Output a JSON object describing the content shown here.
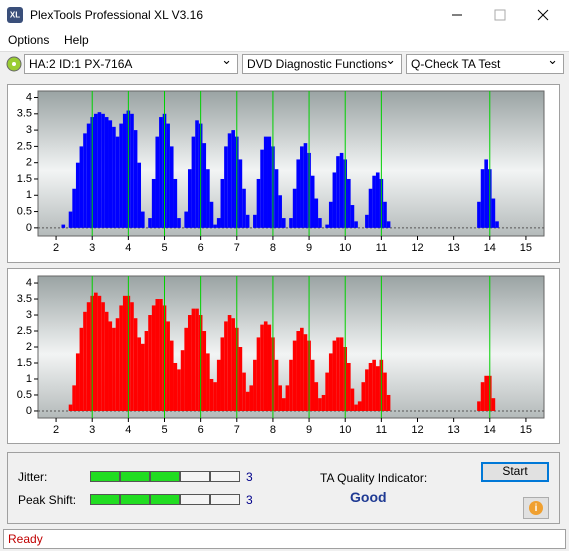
{
  "window": {
    "title": "PlexTools Professional XL V3.16"
  },
  "menu": [
    "Options",
    "Help"
  ],
  "toolbar": {
    "drive": "HA:2 ID:1  PX-716A",
    "function": "DVD Diagnostic Functions",
    "test": "Q-Check TA Test"
  },
  "chart_data": [
    {
      "type": "bar",
      "color": "#0000ff",
      "marker_color": "#00d000",
      "x": [
        2,
        2.1,
        2.2,
        2.3,
        2.4,
        2.5,
        2.6,
        2.7,
        2.8,
        2.9,
        3,
        3.1,
        3.2,
        3.3,
        3.4,
        3.5,
        3.6,
        3.7,
        3.8,
        3.9,
        4,
        4.1,
        4.2,
        4.3,
        4.4,
        4.5,
        4.6,
        4.7,
        4.8,
        4.9,
        5,
        5.1,
        5.2,
        5.3,
        5.4,
        5.5,
        5.6,
        5.7,
        5.8,
        5.9,
        6,
        6.1,
        6.2,
        6.3,
        6.4,
        6.5,
        6.6,
        6.7,
        6.8,
        6.9,
        7,
        7.1,
        7.2,
        7.3,
        7.4,
        7.5,
        7.6,
        7.7,
        7.8,
        7.9,
        8,
        8.1,
        8.2,
        8.3,
        8.4,
        8.5,
        8.6,
        8.7,
        8.8,
        8.9,
        9,
        9.1,
        9.2,
        9.3,
        9.4,
        9.5,
        9.6,
        9.7,
        9.8,
        9.9,
        10,
        10.1,
        10.2,
        10.3,
        10.4,
        10.5,
        10.6,
        10.7,
        10.8,
        10.9,
        11,
        11.1,
        11.2,
        11.3,
        11.4,
        11.5,
        11.6,
        11.7,
        11.8,
        11.9,
        12,
        12.1,
        12.2,
        12.3,
        12.4,
        12.5,
        12.6,
        12.7,
        12.8,
        12.9,
        13,
        13.1,
        13.2,
        13.3,
        13.4,
        13.5,
        13.6,
        13.7,
        13.8,
        13.9,
        14,
        14.1,
        14.2,
        14.3,
        14.4,
        14.5
      ],
      "values": [
        0,
        0,
        0.1,
        0,
        0.5,
        1.2,
        2,
        2.5,
        2.9,
        3.2,
        3.4,
        3.5,
        3.55,
        3.5,
        3.4,
        3.3,
        3.1,
        2.8,
        3.2,
        3.5,
        3.6,
        3.5,
        3,
        2,
        0.5,
        0,
        0.3,
        1.5,
        2.8,
        3.4,
        3.5,
        3.2,
        2.5,
        1.5,
        0.3,
        0,
        0.5,
        1.8,
        2.8,
        3.3,
        3.2,
        2.6,
        1.8,
        0.8,
        0.1,
        0.3,
        1.5,
        2.5,
        2.9,
        3,
        2.8,
        2.1,
        1.2,
        0.4,
        0,
        0.4,
        1.5,
        2.4,
        2.8,
        2.8,
        2.5,
        1.8,
        1,
        0.3,
        0,
        0.3,
        1.2,
        2.1,
        2.5,
        2.6,
        2.3,
        1.6,
        0.9,
        0.3,
        0,
        0.1,
        0.8,
        1.7,
        2.2,
        2.3,
        2.1,
        1.5,
        0.7,
        0.2,
        0,
        0,
        0.4,
        1.2,
        1.6,
        1.7,
        1.5,
        0.8,
        0.2,
        0,
        0,
        0,
        0,
        0,
        0,
        0,
        0,
        0,
        0,
        0,
        0,
        0,
        0,
        0,
        0,
        0,
        0,
        0,
        0,
        0,
        0,
        0,
        0,
        0.8,
        1.8,
        2.1,
        1.8,
        0.9,
        0.2,
        0,
        0,
        0
      ],
      "xlim": [
        1.5,
        15.5
      ],
      "ylim": [
        -0.25,
        4.2
      ],
      "xticks": [
        2,
        3,
        4,
        5,
        6,
        7,
        8,
        9,
        10,
        11,
        12,
        13,
        14,
        15
      ],
      "yticks": [
        0,
        0.5,
        1,
        1.5,
        2,
        2.5,
        3,
        3.5,
        4
      ],
      "markers": [
        3,
        4,
        5,
        6,
        7,
        8,
        9,
        10,
        11,
        14
      ]
    },
    {
      "type": "bar",
      "color": "#ff0000",
      "marker_color": "#00d000",
      "x": [
        2,
        2.1,
        2.2,
        2.3,
        2.4,
        2.5,
        2.6,
        2.7,
        2.8,
        2.9,
        3,
        3.1,
        3.2,
        3.3,
        3.4,
        3.5,
        3.6,
        3.7,
        3.8,
        3.9,
        4,
        4.1,
        4.2,
        4.3,
        4.4,
        4.5,
        4.6,
        4.7,
        4.8,
        4.9,
        5,
        5.1,
        5.2,
        5.3,
        5.4,
        5.5,
        5.6,
        5.7,
        5.8,
        5.9,
        6,
        6.1,
        6.2,
        6.3,
        6.4,
        6.5,
        6.6,
        6.7,
        6.8,
        6.9,
        7,
        7.1,
        7.2,
        7.3,
        7.4,
        7.5,
        7.6,
        7.7,
        7.8,
        7.9,
        8,
        8.1,
        8.2,
        8.3,
        8.4,
        8.5,
        8.6,
        8.7,
        8.8,
        8.9,
        9,
        9.1,
        9.2,
        9.3,
        9.4,
        9.5,
        9.6,
        9.7,
        9.8,
        9.9,
        10,
        10.1,
        10.2,
        10.3,
        10.4,
        10.5,
        10.6,
        10.7,
        10.8,
        10.9,
        11,
        11.1,
        11.2,
        11.3,
        11.4,
        11.5,
        11.6,
        11.7,
        11.8,
        11.9,
        12,
        12.1,
        12.2,
        12.3,
        12.4,
        12.5,
        12.6,
        12.7,
        12.8,
        12.9,
        13,
        13.1,
        13.2,
        13.3,
        13.4,
        13.5,
        13.6,
        13.7,
        13.8,
        13.9,
        14,
        14.1,
        14.2,
        14.3,
        14.4,
        14.5
      ],
      "values": [
        0,
        0,
        0,
        0,
        0.2,
        0.8,
        1.8,
        2.6,
        3.1,
        3.4,
        3.6,
        3.7,
        3.6,
        3.4,
        3.1,
        2.8,
        2.6,
        2.9,
        3.3,
        3.6,
        3.6,
        3.4,
        2.9,
        2.3,
        2.1,
        2.5,
        3,
        3.3,
        3.5,
        3.5,
        3.3,
        2.8,
        2.2,
        1.5,
        1.3,
        1.9,
        2.6,
        3,
        3.2,
        3.2,
        3,
        2.5,
        1.8,
        1,
        0.9,
        1.6,
        2.3,
        2.8,
        3,
        2.9,
        2.6,
        2,
        1.2,
        0.6,
        0.8,
        1.6,
        2.3,
        2.7,
        2.8,
        2.7,
        2.3,
        1.6,
        0.8,
        0.4,
        0.8,
        1.6,
        2.2,
        2.5,
        2.6,
        2.4,
        2.2,
        1.6,
        0.9,
        0.4,
        0.5,
        1.2,
        1.8,
        2.2,
        2.3,
        2.3,
        2,
        1.5,
        0.7,
        0.2,
        0.3,
        0.9,
        1.3,
        1.5,
        1.6,
        1.4,
        1.6,
        1.2,
        0.5,
        0,
        0,
        0,
        0,
        0,
        0,
        0,
        0,
        0,
        0,
        0,
        0,
        0,
        0,
        0,
        0,
        0,
        0,
        0,
        0,
        0,
        0,
        0,
        0,
        0.3,
        0.9,
        1.1,
        1.1,
        0.4,
        0,
        0,
        0,
        0
      ],
      "xlim": [
        1.5,
        15.5
      ],
      "ylim": [
        -0.22,
        4.22
      ],
      "xticks": [
        2,
        3,
        4,
        5,
        6,
        7,
        8,
        9,
        10,
        11,
        12,
        13,
        14,
        15
      ],
      "yticks": [
        0,
        0.5,
        1,
        1.5,
        2,
        2.5,
        3,
        3.5,
        4
      ],
      "markers": [
        3,
        4,
        5,
        6,
        7,
        8,
        9,
        10,
        11,
        14
      ]
    }
  ],
  "results": {
    "jitter": {
      "label": "Jitter:",
      "value": 3
    },
    "peak_shift": {
      "label": "Peak Shift:",
      "value": 3
    },
    "ta_label": "TA Quality Indicator:",
    "ta_value": "Good"
  },
  "button": "Start",
  "status": "Ready"
}
